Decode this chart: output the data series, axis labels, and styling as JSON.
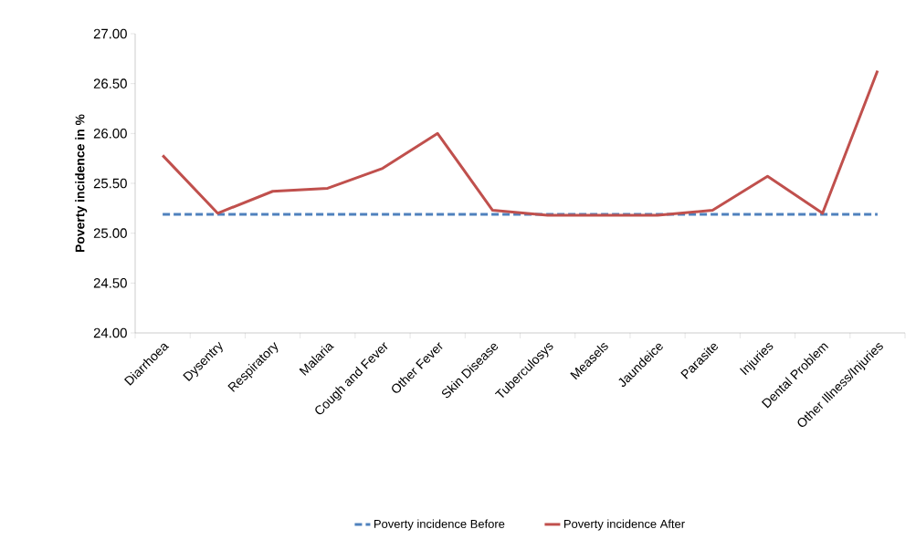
{
  "chart_data": {
    "type": "line",
    "ylabel": "Poverty incidence in %",
    "categories": [
      "Diarrhoea",
      "Dysentry",
      "Respiratory",
      "Malaria",
      "Cough and Fever",
      "Other Fever",
      "Skin Disease",
      "Tuberculosys",
      "Measels",
      "Jaundeice",
      "Parasite",
      "Injuries",
      "Dental Problem",
      "Other Illness/Injuries"
    ],
    "series": [
      {
        "name": "Poverty incidence Before",
        "color": "#4f81bd",
        "line_style": "dashed",
        "values": [
          25.19,
          25.19,
          25.19,
          25.19,
          25.19,
          25.19,
          25.19,
          25.19,
          25.19,
          25.19,
          25.19,
          25.19,
          25.19,
          25.19
        ]
      },
      {
        "name": "Poverty incidence After",
        "color": "#c0504d",
        "line_style": "solid",
        "values": [
          25.78,
          25.2,
          25.42,
          25.45,
          25.65,
          26.0,
          25.23,
          25.18,
          25.18,
          25.18,
          25.23,
          25.57,
          25.2,
          26.63
        ]
      }
    ],
    "ylim": [
      24,
      27
    ],
    "yticks": [
      {
        "value": 24,
        "label": "24.00"
      },
      {
        "value": 24.5,
        "label": "24.50"
      },
      {
        "value": 25,
        "label": "25.00"
      },
      {
        "value": 25.5,
        "label": "25.50"
      },
      {
        "value": 26,
        "label": "26.00"
      },
      {
        "value": 26.5,
        "label": "26.50"
      },
      {
        "value": 27,
        "label": "27.00"
      }
    ],
    "grid": false,
    "legend": "bottom",
    "marker": "none"
  }
}
